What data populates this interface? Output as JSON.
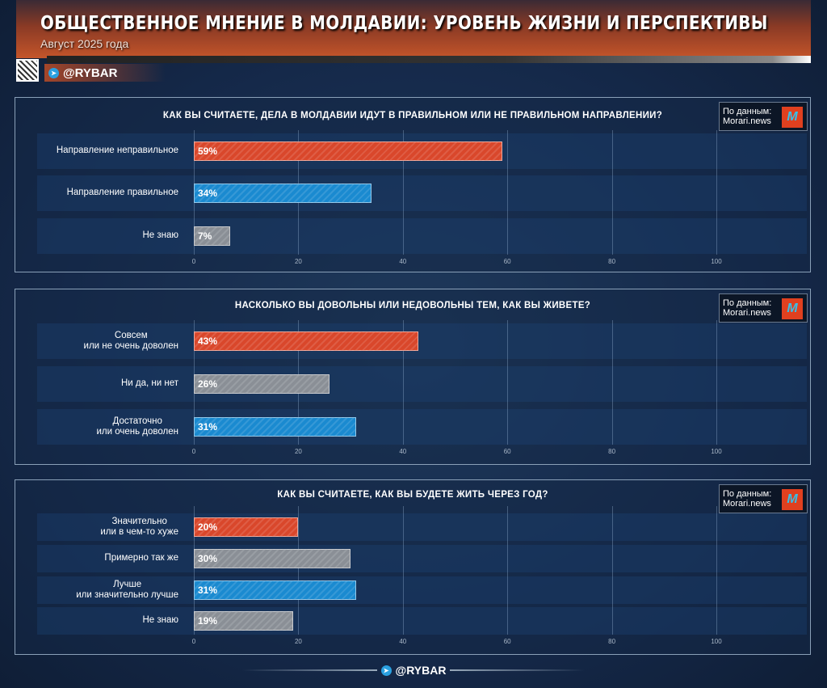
{
  "header": {
    "title": "ОБЩЕСТВЕННОЕ МНЕНИЕ В МОЛДАВИИ: УРОВЕНЬ ЖИЗНИ И ПЕРСПЕКТИВЫ",
    "subtitle": "Август 2025 года",
    "brand": "@RYBAR"
  },
  "source": {
    "label": "По данным:",
    "name": "Morari.news",
    "logo": "M"
  },
  "footer": {
    "brand": "@RYBAR"
  },
  "colors": {
    "negative": "#d9472b",
    "positive": "#1a8ad0",
    "neutral": "#8a8f96"
  },
  "chart_data": [
    {
      "type": "bar",
      "orientation": "horizontal",
      "title": "КАК ВЫ СЧИТАЕТЕ, ДЕЛА В МОЛДАВИИ ИДУТ В ПРАВИЛЬНОМ ИЛИ НЕ ПРАВИЛЬНОМ НАПРАВЛЕНИИ?",
      "categories": [
        "Направление неправильное",
        "Направление правильное",
        "Не знаю"
      ],
      "values": [
        59,
        34,
        7
      ],
      "data_labels": [
        "59%",
        "34%",
        "7%"
      ],
      "bar_colors": [
        "negative",
        "positive",
        "neutral"
      ],
      "xlim": [
        0,
        100
      ],
      "xticks": [
        "0",
        "20",
        "40",
        "60",
        "80",
        "100"
      ],
      "grid": true
    },
    {
      "type": "bar",
      "orientation": "horizontal",
      "title": "НАСКОЛЬКО ВЫ ДОВОЛЬНЫ ИЛИ НЕДОВОЛЬНЫ ТЕМ, КАК ВЫ ЖИВЕТЕ?",
      "categories": [
        "Совсем\nили не очень доволен",
        "Ни да, ни нет",
        "Достаточно\nили очень доволен"
      ],
      "values": [
        43,
        26,
        31
      ],
      "data_labels": [
        "43%",
        "26%",
        "31%"
      ],
      "bar_colors": [
        "negative",
        "neutral",
        "positive"
      ],
      "xlim": [
        0,
        100
      ],
      "xticks": [
        "0",
        "20",
        "40",
        "60",
        "80",
        "100"
      ],
      "grid": true
    },
    {
      "type": "bar",
      "orientation": "horizontal",
      "title": "КАК ВЫ СЧИТАЕТЕ, КАК ВЫ БУДЕТЕ ЖИТЬ ЧЕРЕЗ ГОД?",
      "categories": [
        "Значительно\nили в чем-то хуже",
        "Примерно так же",
        "Лучше\nили значительно лучше",
        "Не знаю"
      ],
      "values": [
        20,
        30,
        31,
        19
      ],
      "data_labels": [
        "20%",
        "30%",
        "31%",
        "19%"
      ],
      "bar_colors": [
        "negative",
        "neutral",
        "positive",
        "neutral"
      ],
      "xlim": [
        0,
        100
      ],
      "xticks": [
        "0",
        "20",
        "40",
        "60",
        "80",
        "100"
      ],
      "grid": true
    }
  ]
}
